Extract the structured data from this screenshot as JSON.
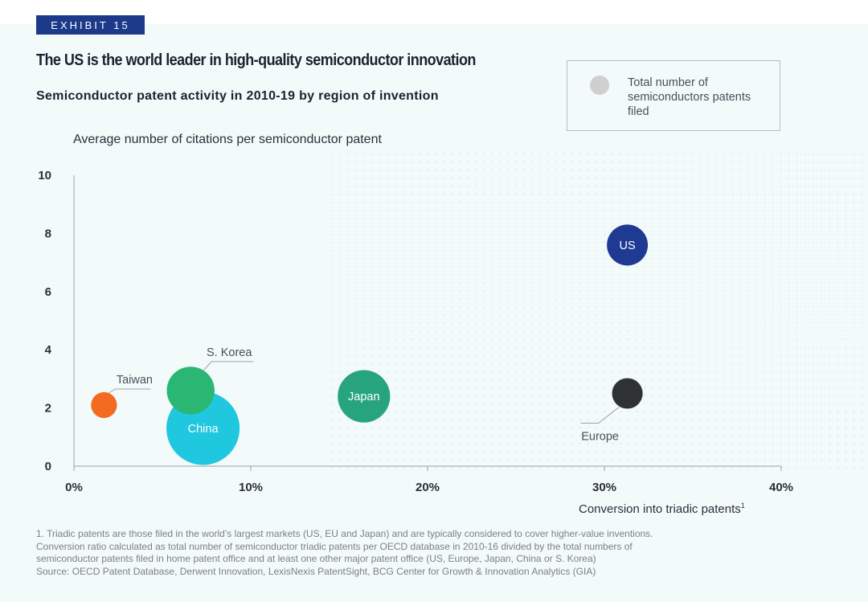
{
  "exhibit_label": "EXHIBIT 15",
  "title": "The US is the world leader in high-quality semiconductor innovation",
  "subtitle": "Semiconductor patent activity in 2010-19 by region of invention",
  "legend": {
    "label": "Total number of semiconductors patents filed",
    "color": "#cfcfcf"
  },
  "footnotes": [
    "1. Triadic patents are those filed in the world’s largest markets (US, EU and Japan) and are typically considered to cover higher-value inventions.",
    "Conversion ratio calculated as total number of semiconductor triadic patents per OECD database in 2010-16 divided by the total numbers of",
    "semiconductor patents filed in home patent office and at least one other major patent office (US, Europe, Japan, China or S. Korea)",
    "Source: OECD Patent Database, Derwent Innovation, LexisNexis PatentSight, BCG Center for Growth & Innovation Analytics (GIA)"
  ],
  "chart_data": {
    "type": "scatter",
    "title": "",
    "xlabel": "Conversion into triadic patents",
    "xlabel_sup": "1",
    "ylabel": "Average number of citations per semiconductor patent",
    "xlim": [
      0,
      40
    ],
    "ylim": [
      0,
      10
    ],
    "x_ticks": [
      0,
      10,
      20,
      30,
      40
    ],
    "x_tick_labels": [
      "0%",
      "10%",
      "20%",
      "30%",
      "40%"
    ],
    "y_ticks": [
      0,
      2,
      4,
      6,
      8,
      10
    ],
    "y_tick_labels": [
      "0",
      "2",
      "4",
      "6",
      "8",
      "10"
    ],
    "grid": false,
    "size_meaning": "Total number of semiconductors patents filed",
    "points": [
      {
        "name": "Taiwan",
        "x": 1.7,
        "y": 2.1,
        "size": 1.0,
        "color": "#f26b21",
        "label_color": "#4a4f5a",
        "label_pos": "callout-left"
      },
      {
        "name": "S. Korea",
        "x": 6.6,
        "y": 2.6,
        "size": 3.4,
        "color": "#2ab673",
        "label_color": "#4a4f5a",
        "label_pos": "callout-right"
      },
      {
        "name": "China",
        "x": 7.3,
        "y": 1.3,
        "size": 8.0,
        "color": "#1fc7df",
        "label_color": "#ffffff",
        "label_pos": "inside"
      },
      {
        "name": "Japan",
        "x": 16.4,
        "y": 2.4,
        "size": 4.1,
        "color": "#27a47e",
        "label_color": "#ffffff",
        "label_pos": "inside"
      },
      {
        "name": "US",
        "x": 31.3,
        "y": 7.6,
        "size": 2.5,
        "color": "#1f3a93",
        "label_color": "#ffffff",
        "label_pos": "inside"
      },
      {
        "name": "Europe",
        "x": 31.3,
        "y": 2.5,
        "size": 1.4,
        "color": "#2e3232",
        "label_color": "#4a4f5a",
        "label_pos": "callout-below"
      }
    ]
  }
}
